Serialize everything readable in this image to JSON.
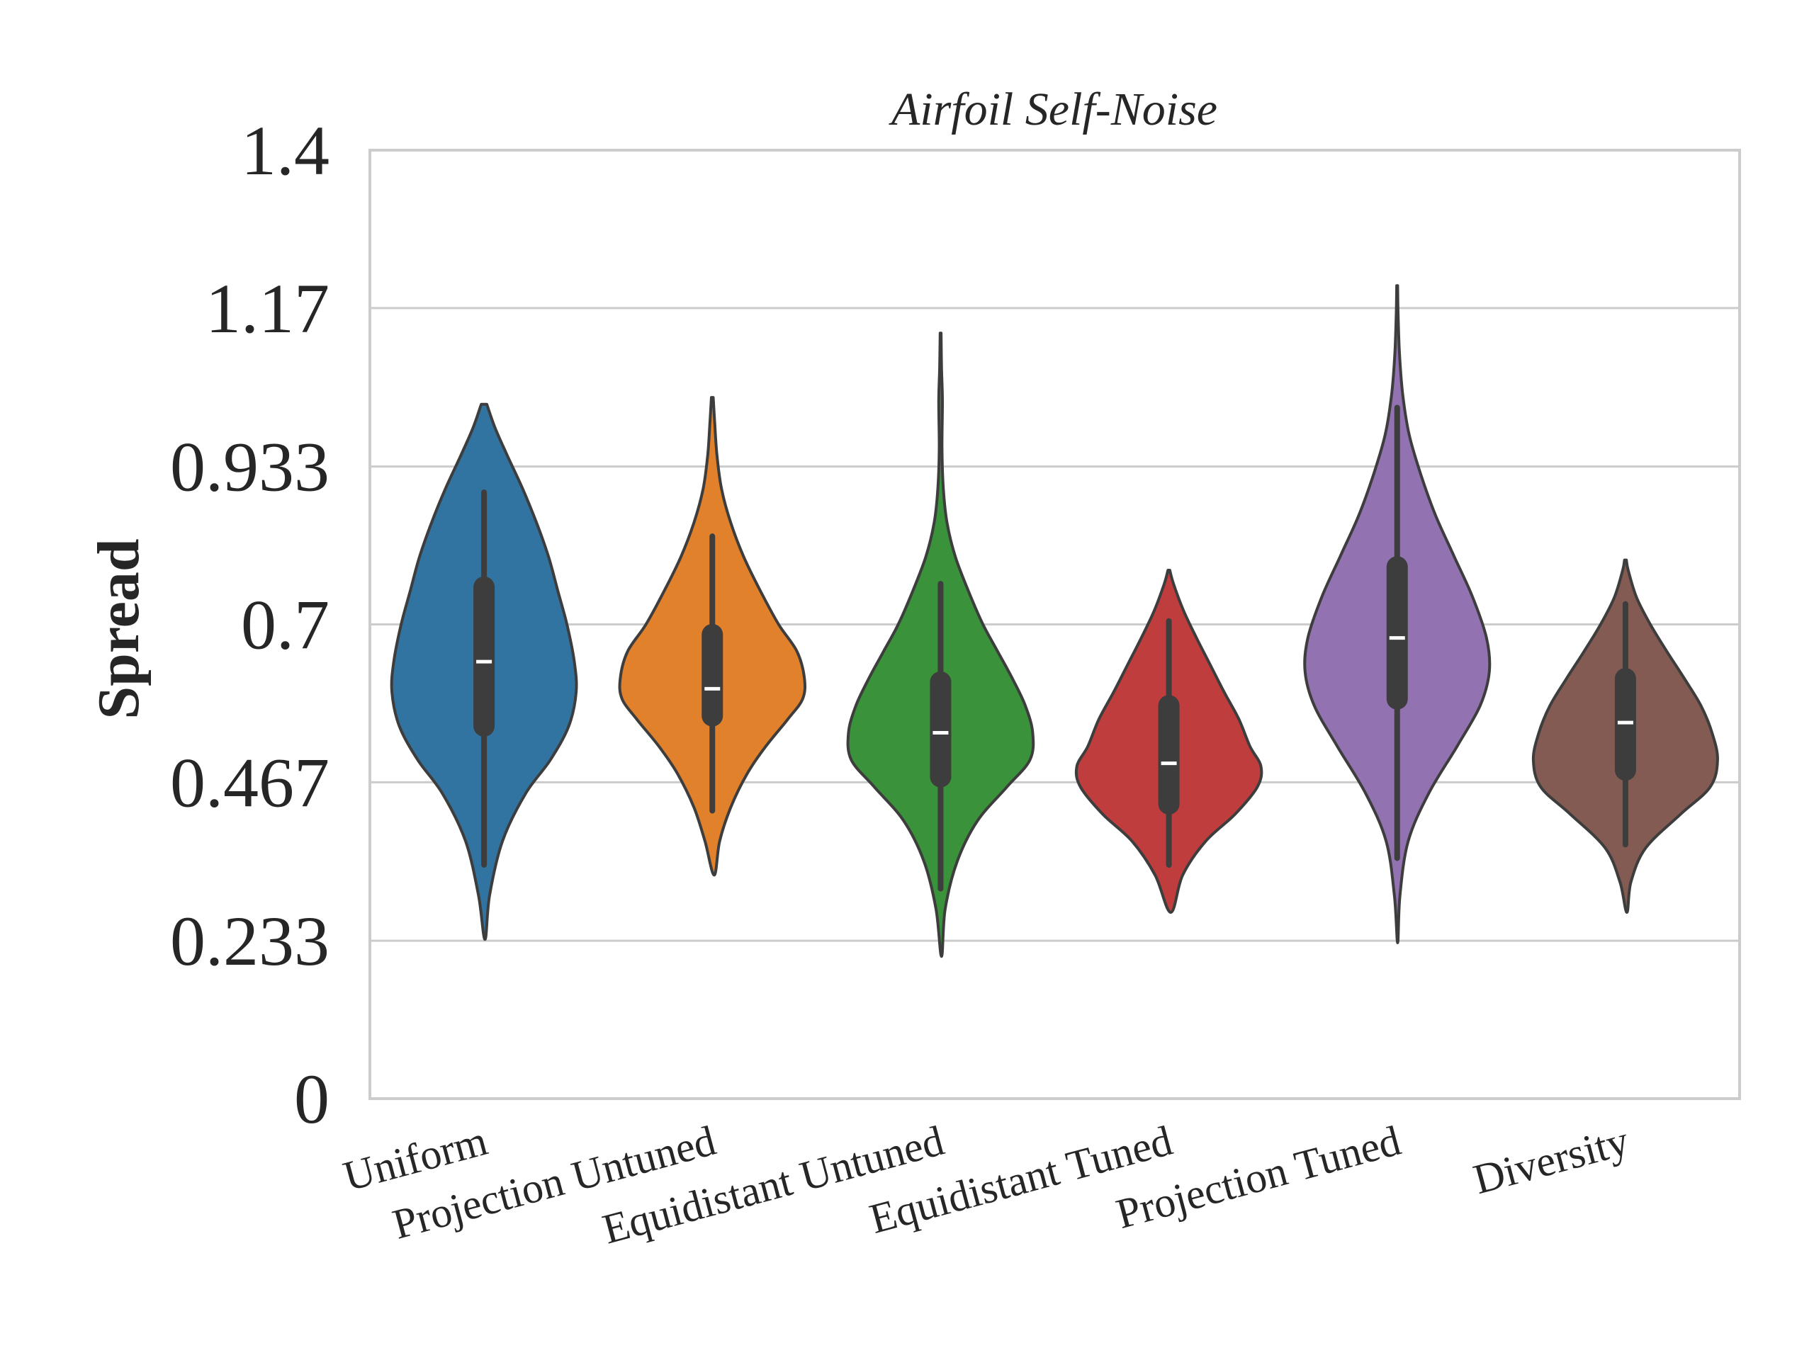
{
  "chart_data": {
    "type": "violin",
    "title": "Airfoil Self-Noise",
    "xlabel": "",
    "ylabel": "Spread",
    "ylim": [
      0,
      1.4
    ],
    "yticks": [
      "0",
      "0.233",
      "0.467",
      "0.7",
      "0.933",
      "1.17",
      "1.4"
    ],
    "ytick_values": [
      0,
      0.233,
      0.467,
      0.7,
      0.933,
      1.167,
      1.4
    ],
    "grid": "horizontal",
    "legend": "none",
    "categories": [
      "Uniform",
      "Projection Untuned",
      "Equidistant Untuned",
      "Equidistant Tuned",
      "Projection Tuned",
      "Diversity"
    ],
    "colors": [
      "#3274a1",
      "#e1812c",
      "#3a923a",
      "#c03d3e",
      "#9372b2",
      "#845b53"
    ],
    "series": [
      {
        "category": "Uniform",
        "min": 0.235,
        "whisker_low": 0.345,
        "q1": 0.55,
        "median": 0.645,
        "q3": 0.755,
        "whisker_high": 0.895,
        "max": 1.025,
        "density_y": [
          0.235,
          0.3,
          0.38,
          0.45,
          0.5,
          0.55,
          0.6,
          0.645,
          0.7,
          0.75,
          0.8,
          0.85,
          0.9,
          0.95,
          0.99,
          1.025
        ],
        "density_w": [
          0.01,
          0.06,
          0.2,
          0.45,
          0.72,
          0.92,
          1.0,
          0.98,
          0.9,
          0.8,
          0.7,
          0.57,
          0.42,
          0.25,
          0.12,
          0.03
        ]
      },
      {
        "category": "Projection Untuned",
        "min": 0.33,
        "whisker_low": 0.425,
        "q1": 0.565,
        "median": 0.605,
        "q3": 0.685,
        "whisker_high": 0.83,
        "max": 1.035,
        "density_y": [
          0.33,
          0.38,
          0.43,
          0.48,
          0.52,
          0.56,
          0.59,
          0.62,
          0.66,
          0.7,
          0.75,
          0.8,
          0.85,
          0.9,
          0.95,
          1.0,
          1.035
        ],
        "density_w": [
          0.02,
          0.08,
          0.2,
          0.38,
          0.58,
          0.82,
          0.98,
          1.0,
          0.92,
          0.72,
          0.52,
          0.34,
          0.2,
          0.1,
          0.05,
          0.025,
          0.01
        ]
      },
      {
        "category": "Equidistant Untuned",
        "min": 0.21,
        "whisker_low": 0.31,
        "q1": 0.475,
        "median": 0.54,
        "q3": 0.615,
        "whisker_high": 0.76,
        "max": 1.13,
        "density_y": [
          0.21,
          0.28,
          0.35,
          0.41,
          0.46,
          0.5,
          0.54,
          0.58,
          0.62,
          0.66,
          0.7,
          0.75,
          0.8,
          0.85,
          0.9,
          0.96,
          1.03,
          1.08,
          1.13
        ],
        "density_w": [
          0.01,
          0.05,
          0.18,
          0.4,
          0.72,
          0.97,
          1.0,
          0.92,
          0.78,
          0.62,
          0.46,
          0.3,
          0.16,
          0.07,
          0.03,
          0.015,
          0.02,
          0.01,
          0.005
        ]
      },
      {
        "category": "Equidistant Tuned",
        "min": 0.275,
        "whisker_low": 0.345,
        "q1": 0.435,
        "median": 0.495,
        "q3": 0.58,
        "whisker_high": 0.705,
        "max": 0.78,
        "density_y": [
          0.275,
          0.33,
          0.38,
          0.42,
          0.46,
          0.49,
          0.52,
          0.56,
          0.6,
          0.64,
          0.68,
          0.72,
          0.76,
          0.78
        ],
        "density_w": [
          0.02,
          0.15,
          0.4,
          0.72,
          0.96,
          1.0,
          0.88,
          0.76,
          0.6,
          0.45,
          0.3,
          0.16,
          0.05,
          0.01
        ]
      },
      {
        "category": "Projection Tuned",
        "min": 0.23,
        "whisker_low": 0.355,
        "q1": 0.59,
        "median": 0.68,
        "q3": 0.785,
        "whisker_high": 1.02,
        "max": 1.2,
        "density_y": [
          0.23,
          0.3,
          0.38,
          0.45,
          0.52,
          0.58,
          0.63,
          0.68,
          0.74,
          0.8,
          0.86,
          0.92,
          0.98,
          1.04,
          1.1,
          1.16,
          1.2
        ],
        "density_w": [
          0.005,
          0.03,
          0.12,
          0.34,
          0.65,
          0.9,
          1.0,
          0.97,
          0.82,
          0.62,
          0.42,
          0.26,
          0.13,
          0.06,
          0.025,
          0.01,
          0.005
        ]
      },
      {
        "category": "Diversity",
        "min": 0.275,
        "whisker_low": 0.375,
        "q1": 0.485,
        "median": 0.555,
        "q3": 0.62,
        "whisker_high": 0.73,
        "max": 0.795,
        "density_y": [
          0.275,
          0.32,
          0.37,
          0.42,
          0.46,
          0.5,
          0.54,
          0.58,
          0.62,
          0.66,
          0.7,
          0.74,
          0.78,
          0.795
        ],
        "density_w": [
          0.015,
          0.06,
          0.22,
          0.6,
          0.92,
          1.0,
          0.94,
          0.82,
          0.64,
          0.45,
          0.27,
          0.12,
          0.03,
          0.01
        ]
      }
    ]
  }
}
